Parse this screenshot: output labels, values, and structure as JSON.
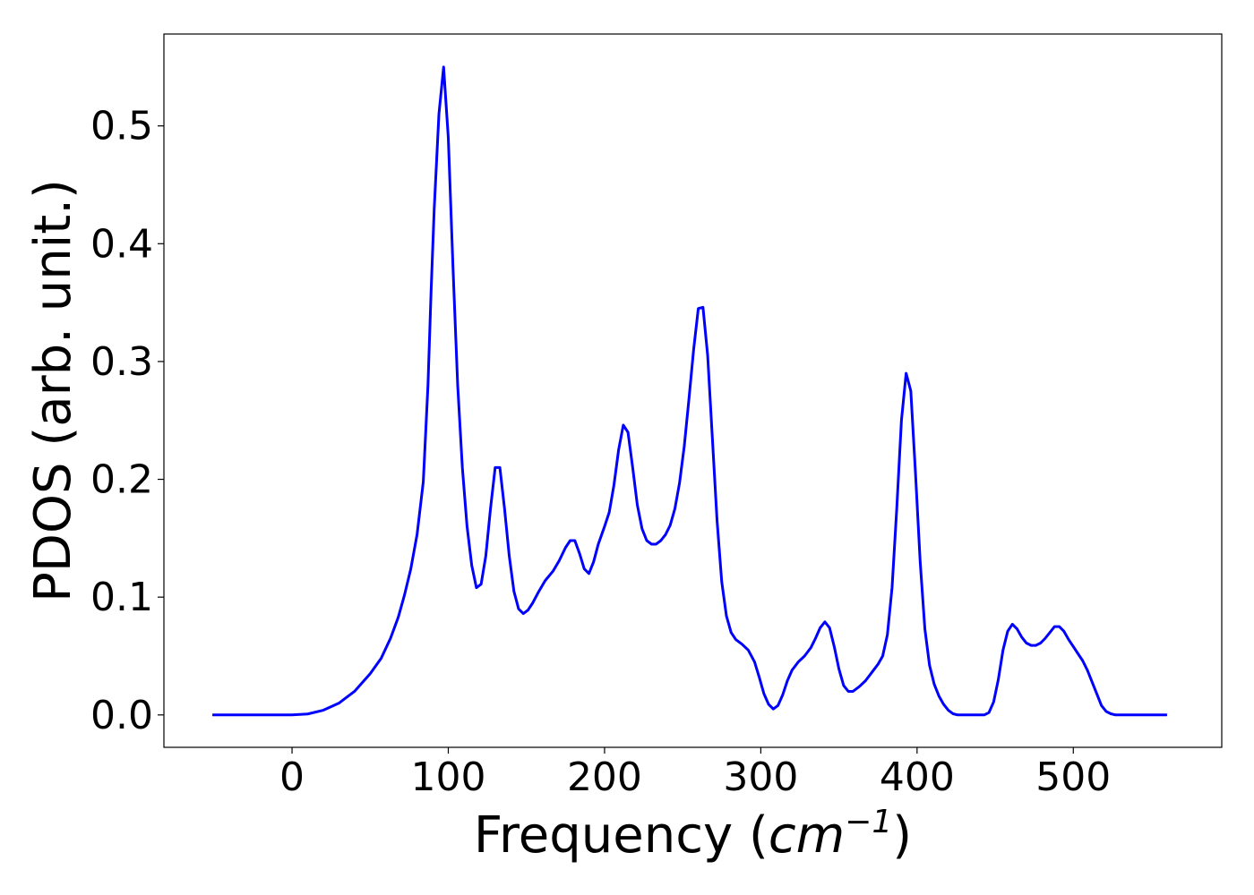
{
  "chart_data": {
    "type": "line",
    "title": "",
    "xlabel": {
      "prefix": "Frequency (",
      "unit_base": "cm",
      "unit_exponent": "−1",
      "suffix": ")"
    },
    "ylabel": "PDOS (arb. unit.)",
    "xlim": [
      -82,
      595
    ],
    "ylim": [
      -0.0275,
      0.578
    ],
    "xticks": [
      0,
      100,
      200,
      300,
      400,
      500
    ],
    "xtick_labels": [
      "0",
      "100",
      "200",
      "300",
      "400",
      "500"
    ],
    "yticks": [
      0.0,
      0.1,
      0.2,
      0.3,
      0.4,
      0.5
    ],
    "ytick_labels": [
      "0.0",
      "0.1",
      "0.2",
      "0.3",
      "0.4",
      "0.5"
    ],
    "grid": false,
    "legend": "none",
    "series": [
      {
        "color": "#0000ff",
        "points": [
          [
            -51,
            0.0
          ],
          [
            -20,
            0.0
          ],
          [
            0,
            0.0
          ],
          [
            10,
            0.0008
          ],
          [
            20,
            0.004
          ],
          [
            30,
            0.01
          ],
          [
            40,
            0.02
          ],
          [
            50,
            0.035
          ],
          [
            57,
            0.048
          ],
          [
            63,
            0.065
          ],
          [
            68,
            0.083
          ],
          [
            72,
            0.102
          ],
          [
            76,
            0.124
          ],
          [
            80,
            0.153
          ],
          [
            84,
            0.198
          ],
          [
            87,
            0.28
          ],
          [
            89,
            0.36
          ],
          [
            91,
            0.43
          ],
          [
            94,
            0.51
          ],
          [
            97,
            0.55
          ],
          [
            100,
            0.49
          ],
          [
            103,
            0.38
          ],
          [
            106,
            0.28
          ],
          [
            109,
            0.21
          ],
          [
            112,
            0.16
          ],
          [
            115,
            0.127
          ],
          [
            118,
            0.108
          ],
          [
            121,
            0.111
          ],
          [
            124,
            0.135
          ],
          [
            127,
            0.175
          ],
          [
            130,
            0.21
          ],
          [
            133,
            0.21
          ],
          [
            136,
            0.175
          ],
          [
            139,
            0.135
          ],
          [
            142,
            0.105
          ],
          [
            145,
            0.09
          ],
          [
            148,
            0.086
          ],
          [
            151,
            0.089
          ],
          [
            154,
            0.095
          ],
          [
            158,
            0.105
          ],
          [
            162,
            0.114
          ],
          [
            167,
            0.122
          ],
          [
            171,
            0.131
          ],
          [
            175,
            0.142
          ],
          [
            178,
            0.148
          ],
          [
            181,
            0.148
          ],
          [
            184,
            0.137
          ],
          [
            187,
            0.124
          ],
          [
            190,
            0.12
          ],
          [
            193,
            0.13
          ],
          [
            196,
            0.145
          ],
          [
            200,
            0.16
          ],
          [
            203,
            0.172
          ],
          [
            206,
            0.195
          ],
          [
            209,
            0.225
          ],
          [
            212,
            0.246
          ],
          [
            215,
            0.24
          ],
          [
            218,
            0.21
          ],
          [
            221,
            0.178
          ],
          [
            224,
            0.158
          ],
          [
            227,
            0.148
          ],
          [
            230,
            0.145
          ],
          [
            233,
            0.145
          ],
          [
            236,
            0.148
          ],
          [
            239,
            0.153
          ],
          [
            242,
            0.161
          ],
          [
            245,
            0.175
          ],
          [
            248,
            0.197
          ],
          [
            251,
            0.228
          ],
          [
            254,
            0.268
          ],
          [
            257,
            0.31
          ],
          [
            260,
            0.345
          ],
          [
            263,
            0.346
          ],
          [
            266,
            0.305
          ],
          [
            269,
            0.235
          ],
          [
            272,
            0.165
          ],
          [
            275,
            0.113
          ],
          [
            278,
            0.084
          ],
          [
            281,
            0.07
          ],
          [
            284,
            0.064
          ],
          [
            288,
            0.06
          ],
          [
            292,
            0.055
          ],
          [
            296,
            0.045
          ],
          [
            299,
            0.032
          ],
          [
            302,
            0.018
          ],
          [
            305,
            0.009
          ],
          [
            308,
            0.005
          ],
          [
            311,
            0.008
          ],
          [
            314,
            0.017
          ],
          [
            317,
            0.029
          ],
          [
            320,
            0.038
          ],
          [
            324,
            0.045
          ],
          [
            328,
            0.05
          ],
          [
            332,
            0.057
          ],
          [
            335,
            0.065
          ],
          [
            338,
            0.074
          ],
          [
            341,
            0.079
          ],
          [
            344,
            0.074
          ],
          [
            347,
            0.058
          ],
          [
            350,
            0.039
          ],
          [
            353,
            0.025
          ],
          [
            356,
            0.02
          ],
          [
            359,
            0.02
          ],
          [
            363,
            0.024
          ],
          [
            367,
            0.029
          ],
          [
            371,
            0.036
          ],
          [
            375,
            0.043
          ],
          [
            378,
            0.05
          ],
          [
            381,
            0.068
          ],
          [
            384,
            0.108
          ],
          [
            387,
            0.175
          ],
          [
            390,
            0.25
          ],
          [
            393,
            0.29
          ],
          [
            396,
            0.275
          ],
          [
            399,
            0.205
          ],
          [
            402,
            0.13
          ],
          [
            405,
            0.073
          ],
          [
            408,
            0.042
          ],
          [
            411,
            0.026
          ],
          [
            414,
            0.016
          ],
          [
            417,
            0.009
          ],
          [
            420,
            0.004
          ],
          [
            423,
            0.001
          ],
          [
            426,
            0.0
          ],
          [
            440,
            0.0
          ],
          [
            443,
            0.0
          ],
          [
            446,
            0.002
          ],
          [
            449,
            0.011
          ],
          [
            452,
            0.03
          ],
          [
            455,
            0.055
          ],
          [
            458,
            0.071
          ],
          [
            461,
            0.077
          ],
          [
            464,
            0.073
          ],
          [
            467,
            0.066
          ],
          [
            470,
            0.061
          ],
          [
            473,
            0.059
          ],
          [
            476,
            0.059
          ],
          [
            479,
            0.061
          ],
          [
            482,
            0.065
          ],
          [
            485,
            0.07
          ],
          [
            488,
            0.075
          ],
          [
            491,
            0.075
          ],
          [
            494,
            0.071
          ],
          [
            497,
            0.064
          ],
          [
            500,
            0.058
          ],
          [
            503,
            0.052
          ],
          [
            506,
            0.046
          ],
          [
            509,
            0.038
          ],
          [
            512,
            0.028
          ],
          [
            515,
            0.018
          ],
          [
            518,
            0.008
          ],
          [
            521,
            0.003
          ],
          [
            524,
            0.001
          ],
          [
            527,
            0.0
          ],
          [
            560,
            0.0
          ]
        ]
      }
    ]
  }
}
